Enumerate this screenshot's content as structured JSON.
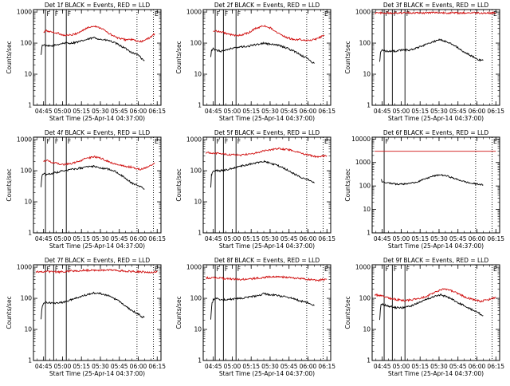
{
  "figure": {
    "xlabel": "Start Time (25-Apr-14 04:37:00)",
    "ylabel": "Counts/sec",
    "x_ticks": [
      "04:45",
      "05:00",
      "05:15",
      "05:30",
      "05:45",
      "06:00",
      "06:15"
    ],
    "x_tick_minutes": [
      8,
      23,
      38,
      53,
      68,
      83,
      98
    ],
    "xlim_minutes": [
      0,
      101
    ],
    "y_ticks": [
      "1",
      "10",
      "100",
      "1000"
    ],
    "y_tick_values": [
      1,
      10,
      100,
      1000
    ],
    "y_ticks_wide": [
      "1",
      "10",
      "100",
      "1000",
      "10000"
    ],
    "y_tick_values_wide": [
      1,
      10,
      100,
      1000,
      10000
    ],
    "colors": {
      "events": "#000000",
      "lld": "#d01010",
      "axes": "#000000"
    }
  },
  "chart_data": [
    {
      "type": "line",
      "title": "Det 1f BLACK = Events, RED = LLD",
      "ylim": [
        1,
        1200
      ],
      "y_scale": "log",
      "markers": [
        {
          "label": "F",
          "minutes": 9.5,
          "style": "solid"
        },
        {
          "label": "F",
          "minutes": 16,
          "style": "solid"
        },
        {
          "label": "F",
          "minutes": 26,
          "style": "solid"
        },
        {
          "label": "",
          "minutes": 82,
          "style": "dotted"
        },
        {
          "label": "E",
          "minutes": 95,
          "style": "dotted"
        }
      ],
      "series": [
        {
          "name": "Events",
          "color": "#000000",
          "x": [
            6,
            6.5,
            7,
            8,
            10,
            14,
            19,
            24,
            30,
            36,
            42,
            48,
            54,
            60,
            66,
            72,
            78,
            84,
            86,
            88
          ],
          "y": [
            40,
            65,
            85,
            90,
            80,
            80,
            90,
            100,
            100,
            110,
            130,
            150,
            130,
            120,
            95,
            70,
            50,
            40,
            30,
            28
          ]
        },
        {
          "name": "LLD",
          "color": "#d01010",
          "x": [
            8,
            10,
            14,
            19,
            24,
            30,
            36,
            42,
            48,
            54,
            60,
            66,
            72,
            78,
            84,
            88,
            92,
            96
          ],
          "y": [
            220,
            250,
            230,
            210,
            180,
            180,
            220,
            300,
            360,
            300,
            200,
            150,
            130,
            130,
            110,
            120,
            150,
            200
          ]
        }
      ]
    },
    {
      "type": "line",
      "title": "Det 2f BLACK = Events, RED = LLD",
      "ylim": [
        1,
        1200
      ],
      "y_scale": "log",
      "markers": [
        {
          "label": "F",
          "minutes": 9.5,
          "style": "solid"
        },
        {
          "label": "F",
          "minutes": 16,
          "style": "solid"
        },
        {
          "label": "F",
          "minutes": 26,
          "style": "solid"
        },
        {
          "label": "",
          "minutes": 82,
          "style": "dotted"
        },
        {
          "label": "E",
          "minutes": 95,
          "style": "dotted"
        }
      ],
      "series": [
        {
          "name": "Events",
          "color": "#000000",
          "x": [
            6,
            6.5,
            7,
            8,
            10,
            14,
            19,
            24,
            30,
            36,
            42,
            48,
            54,
            60,
            66,
            72,
            78,
            84,
            86,
            88
          ],
          "y": [
            35,
            55,
            60,
            65,
            60,
            55,
            60,
            70,
            75,
            80,
            90,
            100,
            90,
            85,
            70,
            55,
            40,
            30,
            25,
            22
          ]
        },
        {
          "name": "LLD",
          "color": "#d01010",
          "x": [
            8,
            10,
            14,
            19,
            24,
            30,
            36,
            42,
            48,
            54,
            60,
            66,
            72,
            78,
            84,
            88,
            92,
            96
          ],
          "y": [
            230,
            250,
            230,
            200,
            180,
            180,
            220,
            300,
            360,
            300,
            200,
            150,
            130,
            130,
            120,
            130,
            150,
            180
          ]
        }
      ]
    },
    {
      "type": "line",
      "title": "Det 3f BLACK = Events, RED = LLD",
      "ylim": [
        1,
        1200
      ],
      "y_scale": "log",
      "markers": [
        {
          "label": "F",
          "minutes": 9.5,
          "style": "solid"
        },
        {
          "label": "F",
          "minutes": 16,
          "style": "solid"
        },
        {
          "label": "F",
          "minutes": 26,
          "style": "solid"
        },
        {
          "label": "",
          "minutes": 82,
          "style": "dotted"
        },
        {
          "label": "E",
          "minutes": 95,
          "style": "dotted"
        }
      ],
      "series": [
        {
          "name": "Events",
          "color": "#000000",
          "x": [
            6,
            6.5,
            7,
            8,
            10,
            14,
            19,
            24,
            30,
            36,
            42,
            48,
            54,
            60,
            66,
            72,
            78,
            84,
            86,
            88
          ],
          "y": [
            25,
            45,
            55,
            60,
            55,
            55,
            55,
            60,
            60,
            70,
            90,
            110,
            130,
            110,
            80,
            55,
            40,
            30,
            28,
            28
          ]
        },
        {
          "name": "LLD",
          "color": "#d01010",
          "x": [
            2,
            10,
            20,
            30,
            40,
            50,
            60,
            70,
            80,
            90,
            98
          ],
          "y": [
            920,
            940,
            930,
            950,
            930,
            960,
            940,
            930,
            950,
            930,
            940
          ]
        }
      ]
    },
    {
      "type": "line",
      "title": "Det 4f BLACK = Events, RED = LLD",
      "ylim": [
        1,
        1200
      ],
      "y_scale": "log",
      "markers": [
        {
          "label": "F",
          "minutes": 9.5,
          "style": "solid"
        },
        {
          "label": "F",
          "minutes": 16,
          "style": "solid"
        },
        {
          "label": "F",
          "minutes": 26,
          "style": "solid"
        },
        {
          "label": "",
          "minutes": 82,
          "style": "dotted"
        },
        {
          "label": "E",
          "minutes": 95,
          "style": "dotted"
        }
      ],
      "series": [
        {
          "name": "Events",
          "color": "#000000",
          "x": [
            6,
            6.5,
            7,
            8,
            10,
            14,
            19,
            24,
            30,
            36,
            42,
            48,
            54,
            60,
            66,
            72,
            78,
            84,
            86,
            88
          ],
          "y": [
            30,
            55,
            70,
            80,
            75,
            80,
            90,
            100,
            110,
            120,
            130,
            140,
            120,
            110,
            90,
            60,
            40,
            32,
            28,
            26
          ]
        },
        {
          "name": "LLD",
          "color": "#d01010",
          "x": [
            8,
            10,
            14,
            19,
            24,
            30,
            36,
            42,
            48,
            54,
            60,
            66,
            72,
            78,
            84,
            88,
            92,
            96
          ],
          "y": [
            200,
            220,
            190,
            170,
            160,
            170,
            200,
            250,
            280,
            250,
            190,
            160,
            140,
            130,
            110,
            120,
            140,
            170
          ]
        }
      ]
    },
    {
      "type": "line",
      "title": "Det 5f BLACK = Events, RED = LLD",
      "ylim": [
        1,
        1200
      ],
      "y_scale": "log",
      "markers": [
        {
          "label": "F",
          "minutes": 9.5,
          "style": "solid"
        },
        {
          "label": "F",
          "minutes": 16,
          "style": "solid"
        },
        {
          "label": "F",
          "minutes": 26,
          "style": "solid"
        },
        {
          "label": "",
          "minutes": 82,
          "style": "dotted"
        },
        {
          "label": "E",
          "minutes": 95,
          "style": "dotted"
        }
      ],
      "series": [
        {
          "name": "Events",
          "color": "#000000",
          "x": [
            6,
            6.5,
            7,
            8,
            10,
            14,
            19,
            24,
            30,
            36,
            42,
            48,
            54,
            60,
            66,
            72,
            78,
            84,
            86,
            88
          ],
          "y": [
            30,
            70,
            85,
            95,
            100,
            100,
            110,
            120,
            140,
            160,
            180,
            200,
            170,
            140,
            110,
            80,
            60,
            50,
            45,
            40
          ]
        },
        {
          "name": "LLD",
          "color": "#d01010",
          "x": [
            2,
            10,
            20,
            30,
            40,
            50,
            60,
            70,
            80,
            90,
            98
          ],
          "y": [
            380,
            370,
            330,
            320,
            360,
            450,
            520,
            460,
            340,
            280,
            300
          ]
        }
      ]
    },
    {
      "type": "line",
      "title": "Det 6f BLACK = Events, RED = LLD",
      "ylim": [
        1,
        12000
      ],
      "y_scale": "log",
      "markers": [
        {
          "label": "F",
          "minutes": 9.5,
          "style": "solid"
        },
        {
          "label": "",
          "minutes": 82,
          "style": "dotted"
        },
        {
          "label": "E",
          "minutes": 95,
          "style": "dotted"
        }
      ],
      "series": [
        {
          "name": "Events",
          "color": "#000000",
          "x": [
            7,
            7.5,
            8,
            10,
            14,
            19,
            24,
            30,
            36,
            42,
            48,
            54,
            60,
            66,
            72,
            78,
            84,
            86,
            88
          ],
          "y": [
            200,
            170,
            150,
            140,
            130,
            120,
            120,
            130,
            150,
            200,
            260,
            300,
            260,
            200,
            160,
            130,
            120,
            115,
            110
          ]
        },
        {
          "name": "LLD",
          "color": "#d01010",
          "x": [
            2,
            98
          ],
          "y": [
            3000,
            3000
          ]
        }
      ]
    },
    {
      "type": "line",
      "title": "Det 7f BLACK = Events, RED = LLD",
      "ylim": [
        1,
        1200
      ],
      "y_scale": "log",
      "markers": [
        {
          "label": "F",
          "minutes": 9.5,
          "style": "solid"
        },
        {
          "label": "F",
          "minutes": 16,
          "style": "solid"
        },
        {
          "label": "F",
          "minutes": 26,
          "style": "solid"
        },
        {
          "label": "",
          "minutes": 82,
          "style": "dotted"
        },
        {
          "label": "E",
          "minutes": 95,
          "style": "dotted"
        }
      ],
      "series": [
        {
          "name": "Events",
          "color": "#000000",
          "x": [
            6,
            6.5,
            7,
            8,
            10,
            14,
            19,
            24,
            30,
            36,
            42,
            48,
            54,
            60,
            66,
            72,
            78,
            84,
            86,
            88
          ],
          "y": [
            20,
            40,
            55,
            65,
            75,
            70,
            70,
            75,
            90,
            110,
            130,
            150,
            140,
            120,
            90,
            60,
            40,
            30,
            25,
            25
          ]
        },
        {
          "name": "LLD",
          "color": "#d01010",
          "x": [
            2,
            10,
            20,
            30,
            40,
            50,
            60,
            70,
            80,
            90,
            98
          ],
          "y": [
            700,
            730,
            700,
            760,
            800,
            780,
            820,
            760,
            720,
            700,
            700
          ]
        }
      ]
    },
    {
      "type": "line",
      "title": "Det 8f BLACK = Events, RED = LLD",
      "ylim": [
        1,
        1200
      ],
      "y_scale": "log",
      "markers": [
        {
          "label": "F",
          "minutes": 9.5,
          "style": "solid"
        },
        {
          "label": "F",
          "minutes": 16,
          "style": "solid"
        },
        {
          "label": "F",
          "minutes": 26,
          "style": "solid"
        },
        {
          "label": "",
          "minutes": 82,
          "style": "dotted"
        },
        {
          "label": "E",
          "minutes": 95,
          "style": "dotted"
        }
      ],
      "series": [
        {
          "name": "Events",
          "color": "#000000",
          "x": [
            6,
            6.5,
            7,
            8,
            10,
            14,
            19,
            24,
            30,
            36,
            42,
            48,
            54,
            60,
            66,
            72,
            78,
            84,
            86,
            88
          ],
          "y": [
            20,
            45,
            70,
            90,
            100,
            90,
            90,
            95,
            100,
            110,
            120,
            140,
            130,
            120,
            110,
            95,
            80,
            70,
            60,
            58
          ]
        },
        {
          "name": "LLD",
          "color": "#d01010",
          "x": [
            2,
            10,
            20,
            30,
            40,
            50,
            60,
            70,
            80,
            90,
            98
          ],
          "y": [
            450,
            460,
            420,
            400,
            430,
            480,
            500,
            460,
            420,
            380,
            410
          ]
        }
      ]
    },
    {
      "type": "line",
      "title": "Det 9f BLACK = Events, RED = LLD",
      "ylim": [
        1,
        1200
      ],
      "y_scale": "log",
      "markers": [
        {
          "label": "F",
          "minutes": 9.5,
          "style": "solid"
        },
        {
          "label": "F",
          "minutes": 16,
          "style": "solid"
        },
        {
          "label": "F",
          "minutes": 26,
          "style": "solid"
        },
        {
          "label": "",
          "minutes": 82,
          "style": "dotted"
        },
        {
          "label": "E",
          "minutes": 95,
          "style": "dotted"
        }
      ],
      "series": [
        {
          "name": "Events",
          "color": "#000000",
          "x": [
            6,
            6.5,
            7,
            8,
            10,
            14,
            19,
            24,
            30,
            36,
            42,
            48,
            54,
            60,
            66,
            72,
            78,
            84,
            86,
            88
          ],
          "y": [
            20,
            45,
            60,
            65,
            60,
            55,
            50,
            50,
            55,
            70,
            90,
            110,
            130,
            110,
            80,
            60,
            45,
            35,
            30,
            28
          ]
        },
        {
          "name": "LLD",
          "color": "#d01010",
          "x": [
            2,
            8,
            14,
            20,
            26,
            32,
            38,
            44,
            50,
            56,
            62,
            68,
            74,
            80,
            86,
            92,
            98
          ],
          "y": [
            130,
            120,
            100,
            90,
            85,
            90,
            100,
            120,
            160,
            200,
            180,
            140,
            110,
            90,
            80,
            90,
            110
          ]
        }
      ]
    }
  ]
}
